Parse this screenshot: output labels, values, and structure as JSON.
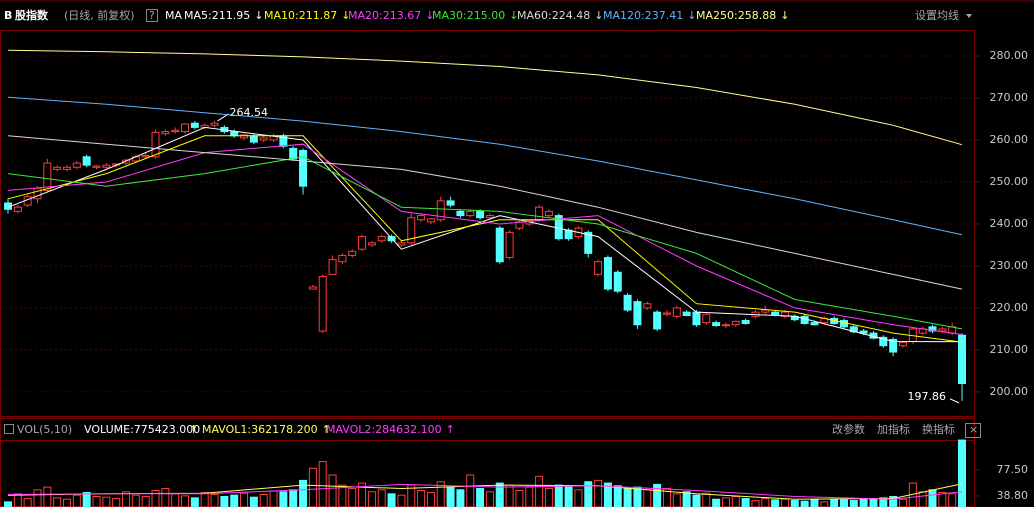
{
  "chart_data": [
    {
      "type": "candlestick",
      "badge": "B",
      "title": "股指数",
      "subtitle": "(日线, 前复权)",
      "help": "?",
      "ma_label": "MA",
      "settings": "设置均线",
      "up_color": "#ff3c3c",
      "down_color": "#54ffff",
      "grid": true,
      "ylim": [
        194.5,
        286.2
      ],
      "yticks": [
        {
          "value": 200,
          "label": "200.00"
        },
        {
          "value": 210,
          "label": "210.00"
        },
        {
          "value": 220,
          "label": "220.00"
        },
        {
          "value": 230,
          "label": "230.00"
        },
        {
          "value": 240,
          "label": "240.00"
        },
        {
          "value": 250,
          "label": "250.00"
        },
        {
          "value": 260,
          "label": "260.00"
        },
        {
          "value": 270,
          "label": "270.00"
        },
        {
          "value": 280,
          "label": "280.00"
        }
      ],
      "open": [
        245,
        243,
        244.5,
        246,
        248,
        253,
        253,
        253.5,
        256,
        253.5,
        253.5,
        254,
        254.5,
        255,
        256,
        256,
        261.5,
        262,
        262,
        264,
        263,
        263.5,
        263,
        262,
        260.5,
        261,
        260,
        260,
        261,
        258,
        257.5,
        224.5,
        214.5,
        228,
        231,
        232.5,
        234,
        235,
        236,
        237,
        235,
        235.5,
        241,
        240.5,
        241,
        245.5,
        243,
        242,
        243,
        241.5,
        239,
        232,
        239,
        240,
        241,
        242,
        242,
        238.5,
        237,
        238,
        228,
        232,
        228.5,
        223,
        221.5,
        220,
        219,
        218.5,
        218,
        219,
        219,
        216.5,
        216.5,
        215.8,
        216,
        217,
        218,
        219,
        219,
        218,
        218,
        218,
        216.5,
        216.5,
        217.5,
        217,
        215.5,
        214.5,
        214,
        213,
        212.5,
        211,
        212,
        214,
        215.5,
        214.5,
        214,
        213.5
      ],
      "high": [
        246,
        244.5,
        247,
        249,
        255.5,
        254,
        254,
        255,
        256.5,
        254,
        254.5,
        254.5,
        255.5,
        256.5,
        257,
        262.5,
        262.5,
        263,
        264,
        264.5,
        264,
        264.54,
        263.5,
        262.5,
        261.5,
        261.5,
        261,
        261.5,
        261.5,
        258.5,
        258,
        225.5,
        228,
        232.5,
        233,
        234,
        237.5,
        236,
        237.5,
        237.5,
        236,
        242.5,
        242.5,
        241.5,
        246.5,
        246.5,
        243.5,
        243.5,
        243.5,
        242.5,
        239.5,
        238.5,
        241,
        241,
        244.5,
        243.5,
        242.5,
        239,
        239.5,
        238.5,
        231.5,
        232.5,
        229,
        223.5,
        222,
        221.5,
        219.5,
        219.5,
        220.5,
        219.5,
        219.5,
        219,
        217,
        216.5,
        217,
        217.5,
        219.5,
        220.5,
        219.5,
        219.5,
        218.5,
        218.5,
        217,
        218,
        218,
        217.5,
        216,
        215,
        214.5,
        213.5,
        213,
        212,
        215.5,
        215.5,
        216,
        215.5,
        216.5,
        214
      ],
      "low": [
        242.5,
        242.5,
        244,
        245,
        247.5,
        252.5,
        252.5,
        253,
        253.5,
        253,
        253,
        253.5,
        254,
        254.5,
        255.5,
        255.5,
        261,
        261.5,
        261.5,
        262.5,
        262.5,
        263,
        261.5,
        260.5,
        260,
        259,
        259.5,
        259.5,
        258,
        255,
        247,
        224.5,
        214,
        228,
        230.5,
        232,
        233.5,
        234.5,
        235.5,
        235.5,
        234.5,
        235,
        240.5,
        240,
        240.5,
        244,
        241.5,
        241.5,
        241,
        241,
        230.5,
        231.5,
        238.5,
        239.5,
        240.5,
        241.5,
        236,
        236,
        236.5,
        232,
        227.5,
        224,
        223.5,
        219,
        215,
        219.5,
        214.5,
        218,
        217.5,
        218,
        215.5,
        216,
        215.5,
        215.2,
        215.5,
        216,
        217.5,
        218.5,
        218,
        217.5,
        216.8,
        216,
        215.8,
        216,
        216,
        215,
        214,
        213.5,
        212.5,
        210.5,
        208.5,
        210.5,
        211.5,
        213.5,
        214,
        214,
        213.5,
        197.86
      ],
      "close": [
        243.5,
        244,
        246.5,
        248.5,
        254.5,
        253.5,
        253.5,
        254.5,
        254,
        253.8,
        254,
        254.3,
        255.2,
        256,
        256.3,
        261.8,
        262,
        262.3,
        263.8,
        263,
        263.5,
        264,
        262,
        261,
        261.2,
        259.5,
        260.5,
        261,
        258.5,
        255.5,
        249,
        225,
        227.5,
        231.5,
        232.5,
        233.5,
        237,
        235.5,
        237,
        236,
        235.5,
        241.5,
        242,
        241.2,
        245.5,
        244.5,
        242,
        243,
        241.5,
        242,
        231,
        238,
        240.5,
        240.8,
        244,
        243,
        236.5,
        236.5,
        239,
        233,
        231,
        224.5,
        224,
        219.5,
        216,
        221,
        215,
        218.8,
        220,
        218.2,
        216,
        218.5,
        215.8,
        216,
        216.8,
        216.3,
        219,
        219.5,
        218.3,
        219,
        217.2,
        216.3,
        216,
        217.5,
        216.3,
        215.5,
        214.3,
        214,
        212.8,
        211,
        209.5,
        211.8,
        215,
        215,
        214.5,
        215,
        215.5,
        202
      ],
      "lines": [
        {
          "name": "MA5:211.95",
          "arrow": "↓",
          "color": "#ffffff",
          "x": [
            0,
            10,
            20,
            30,
            40,
            50,
            60,
            70,
            80,
            90,
            97
          ],
          "values": [
            244,
            253,
            263,
            260,
            234,
            242,
            237,
            219,
            218,
            212,
            211.95
          ]
        },
        {
          "name": "MA10:211.87",
          "arrow": "↓",
          "color": "#ffff00",
          "x": [
            0,
            10,
            20,
            30,
            40,
            50,
            60,
            70,
            80,
            90,
            97
          ],
          "values": [
            246,
            252,
            261,
            261,
            236,
            241,
            241,
            221,
            219,
            214,
            211.87
          ]
        },
        {
          "name": "MA20:213.67",
          "arrow": "↓",
          "color": "#ff3cff",
          "x": [
            0,
            10,
            20,
            30,
            40,
            50,
            60,
            70,
            80,
            90,
            97
          ],
          "values": [
            248,
            250,
            257,
            259,
            243,
            240,
            242,
            230,
            220,
            216,
            213.67
          ]
        },
        {
          "name": "MA30:215.00",
          "arrow": "↓",
          "color": "#3ce63c",
          "x": [
            0,
            10,
            20,
            30,
            40,
            50,
            60,
            70,
            80,
            90,
            97
          ],
          "values": [
            252,
            249,
            252,
            256,
            244,
            243,
            240,
            233,
            222,
            218,
            215
          ]
        },
        {
          "name": "MA60:224.48",
          "arrow": "↓",
          "color": "#d8d8d8",
          "x": [
            0,
            10,
            20,
            30,
            40,
            50,
            60,
            70,
            80,
            90,
            97
          ],
          "values": [
            261,
            259,
            257,
            255,
            253,
            249,
            244,
            238,
            233,
            228,
            224.48
          ]
        },
        {
          "name": "MA120:237.41",
          "arrow": "↓",
          "color": "#5fb4ff",
          "x": [
            0,
            10,
            20,
            30,
            40,
            50,
            60,
            70,
            80,
            90,
            97
          ],
          "values": [
            270.2,
            268.5,
            266.5,
            264.5,
            262,
            259,
            255,
            250.5,
            246,
            241,
            237.41
          ]
        },
        {
          "name": "MA250:258.88",
          "arrow": "↓",
          "color": "#ffff96",
          "x": [
            0,
            10,
            20,
            30,
            40,
            50,
            60,
            70,
            80,
            90,
            97
          ],
          "values": [
            281.4,
            281,
            280.5,
            279.8,
            278.8,
            277.5,
            275.5,
            272.5,
            268.5,
            263.5,
            258.88
          ]
        }
      ]
    },
    {
      "type": "bar",
      "title": "VOL(5,10)",
      "buttons": [
        "改参数",
        "加指标",
        "换指标",
        "×"
      ],
      "ylim": [
        22.4,
        122.1
      ],
      "yticks": [
        {
          "value": 38.8,
          "label": "38.80"
        },
        {
          "value": 77.5,
          "label": "77.50"
        }
      ],
      "series": [
        {
          "name": "VOLUME:775423.000",
          "arrow": "↑",
          "color": "#ffffff",
          "values": [
            30,
            42,
            35,
            48,
            52,
            36,
            34,
            40,
            44,
            38,
            37,
            35,
            45,
            40,
            38,
            47,
            50,
            42,
            39,
            36,
            44,
            41,
            38,
            40,
            43,
            37,
            41,
            46,
            45,
            48,
            62,
            80,
            90,
            70,
            55,
            50,
            58,
            45,
            48,
            42,
            40,
            55,
            47,
            44,
            60,
            52,
            48,
            70,
            50,
            45,
            58,
            55,
            47,
            52,
            68,
            50,
            55,
            52,
            48,
            60,
            62,
            58,
            54,
            50,
            52,
            48,
            56,
            50,
            42,
            45,
            40,
            43,
            34,
            36,
            38,
            35,
            32,
            35,
            33,
            34,
            32,
            31,
            33,
            30,
            34,
            33,
            32,
            35,
            34,
            36,
            38,
            34,
            58,
            45,
            48,
            44,
            42,
            122
          ]
        }
      ],
      "lines": [
        {
          "name": "MAVOL1:362178.200",
          "arrow": "↑",
          "color": "#ffff60",
          "x": [
            0,
            10,
            20,
            30,
            40,
            50,
            60,
            70,
            80,
            90,
            97
          ],
          "values": [
            40,
            42,
            43,
            55,
            50,
            55,
            54,
            42,
            34,
            35,
            57
          ]
        },
        {
          "name": "MAVOL2:284632.100",
          "arrow": "↑",
          "color": "#ff3cff",
          "x": [
            0,
            10,
            20,
            30,
            40,
            50,
            60,
            70,
            80,
            90,
            97
          ],
          "values": [
            41,
            42,
            42,
            48,
            56,
            52,
            54,
            47,
            38,
            34,
            45
          ]
        }
      ]
    }
  ]
}
